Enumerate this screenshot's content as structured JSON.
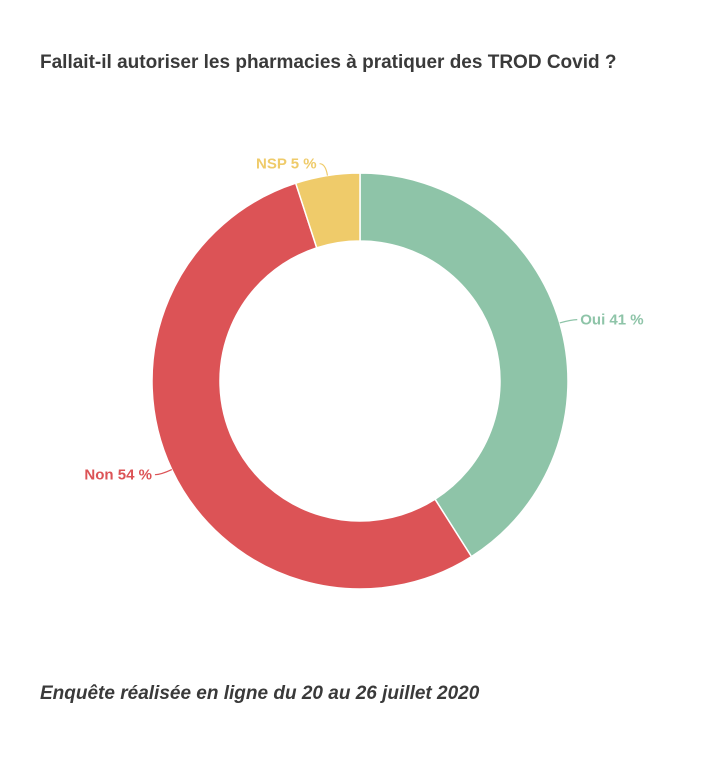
{
  "chart_data": {
    "type": "pie",
    "title": "Fallait-il autoriser les pharmacies à pratiquer des TROD Covid ?",
    "slices": [
      {
        "name": "Oui",
        "value": 41,
        "label": "Oui 41 %",
        "color": "#8ec4a8"
      },
      {
        "name": "Non",
        "value": 54,
        "label": "Non 54 %",
        "color": "#dc5356"
      },
      {
        "name": "NSP",
        "value": 5,
        "label": "NSP 5 %",
        "color": "#efcb6a"
      }
    ],
    "donut": true
  },
  "footer": {
    "note": "Enquête réalisée en ligne du 20 au 26 juillet 2020"
  }
}
